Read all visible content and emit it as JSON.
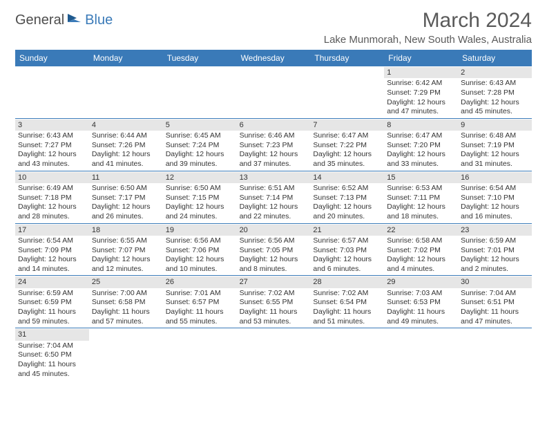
{
  "logo": {
    "text1": "General",
    "text2": "Blue"
  },
  "title": "March 2024",
  "location": "Lake Munmorah, New South Wales, Australia",
  "colors": {
    "header_bg": "#3a7ab8",
    "header_text": "#ffffff",
    "daynum_bg": "#e6e6e6",
    "border": "#3a7ab8",
    "text": "#333333",
    "title_color": "#5a5a5a"
  },
  "day_headers": [
    "Sunday",
    "Monday",
    "Tuesday",
    "Wednesday",
    "Thursday",
    "Friday",
    "Saturday"
  ],
  "weeks": [
    [
      null,
      null,
      null,
      null,
      null,
      {
        "n": "1",
        "sr": "Sunrise: 6:42 AM",
        "ss": "Sunset: 7:29 PM",
        "dl": "Daylight: 12 hours and 47 minutes."
      },
      {
        "n": "2",
        "sr": "Sunrise: 6:43 AM",
        "ss": "Sunset: 7:28 PM",
        "dl": "Daylight: 12 hours and 45 minutes."
      }
    ],
    [
      {
        "n": "3",
        "sr": "Sunrise: 6:43 AM",
        "ss": "Sunset: 7:27 PM",
        "dl": "Daylight: 12 hours and 43 minutes."
      },
      {
        "n": "4",
        "sr": "Sunrise: 6:44 AM",
        "ss": "Sunset: 7:26 PM",
        "dl": "Daylight: 12 hours and 41 minutes."
      },
      {
        "n": "5",
        "sr": "Sunrise: 6:45 AM",
        "ss": "Sunset: 7:24 PM",
        "dl": "Daylight: 12 hours and 39 minutes."
      },
      {
        "n": "6",
        "sr": "Sunrise: 6:46 AM",
        "ss": "Sunset: 7:23 PM",
        "dl": "Daylight: 12 hours and 37 minutes."
      },
      {
        "n": "7",
        "sr": "Sunrise: 6:47 AM",
        "ss": "Sunset: 7:22 PM",
        "dl": "Daylight: 12 hours and 35 minutes."
      },
      {
        "n": "8",
        "sr": "Sunrise: 6:47 AM",
        "ss": "Sunset: 7:20 PM",
        "dl": "Daylight: 12 hours and 33 minutes."
      },
      {
        "n": "9",
        "sr": "Sunrise: 6:48 AM",
        "ss": "Sunset: 7:19 PM",
        "dl": "Daylight: 12 hours and 31 minutes."
      }
    ],
    [
      {
        "n": "10",
        "sr": "Sunrise: 6:49 AM",
        "ss": "Sunset: 7:18 PM",
        "dl": "Daylight: 12 hours and 28 minutes."
      },
      {
        "n": "11",
        "sr": "Sunrise: 6:50 AM",
        "ss": "Sunset: 7:17 PM",
        "dl": "Daylight: 12 hours and 26 minutes."
      },
      {
        "n": "12",
        "sr": "Sunrise: 6:50 AM",
        "ss": "Sunset: 7:15 PM",
        "dl": "Daylight: 12 hours and 24 minutes."
      },
      {
        "n": "13",
        "sr": "Sunrise: 6:51 AM",
        "ss": "Sunset: 7:14 PM",
        "dl": "Daylight: 12 hours and 22 minutes."
      },
      {
        "n": "14",
        "sr": "Sunrise: 6:52 AM",
        "ss": "Sunset: 7:13 PM",
        "dl": "Daylight: 12 hours and 20 minutes."
      },
      {
        "n": "15",
        "sr": "Sunrise: 6:53 AM",
        "ss": "Sunset: 7:11 PM",
        "dl": "Daylight: 12 hours and 18 minutes."
      },
      {
        "n": "16",
        "sr": "Sunrise: 6:54 AM",
        "ss": "Sunset: 7:10 PM",
        "dl": "Daylight: 12 hours and 16 minutes."
      }
    ],
    [
      {
        "n": "17",
        "sr": "Sunrise: 6:54 AM",
        "ss": "Sunset: 7:09 PM",
        "dl": "Daylight: 12 hours and 14 minutes."
      },
      {
        "n": "18",
        "sr": "Sunrise: 6:55 AM",
        "ss": "Sunset: 7:07 PM",
        "dl": "Daylight: 12 hours and 12 minutes."
      },
      {
        "n": "19",
        "sr": "Sunrise: 6:56 AM",
        "ss": "Sunset: 7:06 PM",
        "dl": "Daylight: 12 hours and 10 minutes."
      },
      {
        "n": "20",
        "sr": "Sunrise: 6:56 AM",
        "ss": "Sunset: 7:05 PM",
        "dl": "Daylight: 12 hours and 8 minutes."
      },
      {
        "n": "21",
        "sr": "Sunrise: 6:57 AM",
        "ss": "Sunset: 7:03 PM",
        "dl": "Daylight: 12 hours and 6 minutes."
      },
      {
        "n": "22",
        "sr": "Sunrise: 6:58 AM",
        "ss": "Sunset: 7:02 PM",
        "dl": "Daylight: 12 hours and 4 minutes."
      },
      {
        "n": "23",
        "sr": "Sunrise: 6:59 AM",
        "ss": "Sunset: 7:01 PM",
        "dl": "Daylight: 12 hours and 2 minutes."
      }
    ],
    [
      {
        "n": "24",
        "sr": "Sunrise: 6:59 AM",
        "ss": "Sunset: 6:59 PM",
        "dl": "Daylight: 11 hours and 59 minutes."
      },
      {
        "n": "25",
        "sr": "Sunrise: 7:00 AM",
        "ss": "Sunset: 6:58 PM",
        "dl": "Daylight: 11 hours and 57 minutes."
      },
      {
        "n": "26",
        "sr": "Sunrise: 7:01 AM",
        "ss": "Sunset: 6:57 PM",
        "dl": "Daylight: 11 hours and 55 minutes."
      },
      {
        "n": "27",
        "sr": "Sunrise: 7:02 AM",
        "ss": "Sunset: 6:55 PM",
        "dl": "Daylight: 11 hours and 53 minutes."
      },
      {
        "n": "28",
        "sr": "Sunrise: 7:02 AM",
        "ss": "Sunset: 6:54 PM",
        "dl": "Daylight: 11 hours and 51 minutes."
      },
      {
        "n": "29",
        "sr": "Sunrise: 7:03 AM",
        "ss": "Sunset: 6:53 PM",
        "dl": "Daylight: 11 hours and 49 minutes."
      },
      {
        "n": "30",
        "sr": "Sunrise: 7:04 AM",
        "ss": "Sunset: 6:51 PM",
        "dl": "Daylight: 11 hours and 47 minutes."
      }
    ],
    [
      {
        "n": "31",
        "sr": "Sunrise: 7:04 AM",
        "ss": "Sunset: 6:50 PM",
        "dl": "Daylight: 11 hours and 45 minutes."
      },
      null,
      null,
      null,
      null,
      null,
      null
    ]
  ]
}
